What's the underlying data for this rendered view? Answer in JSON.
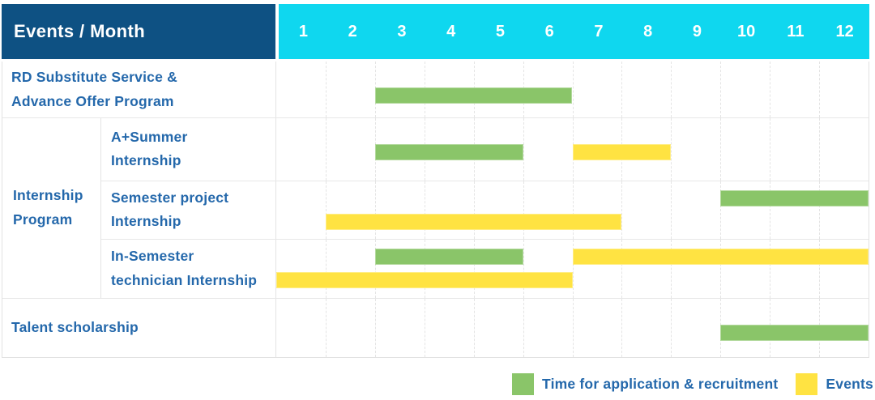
{
  "colors": {
    "header_bg": "#0E5183",
    "months_bg": "#0FD7EF",
    "label_text": "#2468AB",
    "recruitment": "#8AC569",
    "event": "#FFE342",
    "grid": "#E4E4E4",
    "row_line": "#E8E8E8",
    "border": "#E2E2E2"
  },
  "chart_data": {
    "type": "gantt",
    "corner_label": "Events / Month",
    "months": [
      "1",
      "2",
      "3",
      "4",
      "5",
      "6",
      "7",
      "8",
      "9",
      "10",
      "11",
      "12"
    ],
    "x_axis_unit": "month",
    "x_range": [
      1,
      12
    ],
    "legend": [
      {
        "type": "recruitment",
        "label": "Time for application & recruitment",
        "color": "#8AC569"
      },
      {
        "type": "event",
        "label": "Events",
        "color": "#FFE342"
      }
    ],
    "rows": [
      {
        "label": "RD Substitute Service &\nAdvance Offer Program",
        "bars": [
          {
            "type": "recruitment",
            "start_month": 3,
            "end_month": 6,
            "lane": "middle"
          }
        ]
      },
      {
        "group": "Internship\nProgram",
        "children": [
          {
            "label": "A+Summer\nInternship",
            "bars": [
              {
                "type": "recruitment",
                "start_month": 3,
                "end_month": 5,
                "lane": "middle"
              },
              {
                "type": "event",
                "start_month": 7,
                "end_month": 8,
                "lane": "middle"
              }
            ]
          },
          {
            "label": "Semester project\nInternship",
            "bars": [
              {
                "type": "recruitment",
                "start_month": 10,
                "end_month": 12,
                "lane": "top"
              },
              {
                "type": "event",
                "start_month": 2,
                "end_month": 7,
                "lane": "bottom"
              }
            ]
          },
          {
            "label": "In-Semester\ntechnician Internship",
            "bars": [
              {
                "type": "recruitment",
                "start_month": 3,
                "end_month": 5,
                "lane": "top"
              },
              {
                "type": "event",
                "start_month": 7,
                "end_month": 12,
                "lane": "top"
              },
              {
                "type": "event",
                "start_month": 1,
                "end_month": 6,
                "lane": "bottom"
              }
            ]
          }
        ]
      },
      {
        "label": "Talent scholarship",
        "bars": [
          {
            "type": "recruitment",
            "start_month": 10,
            "end_month": 12,
            "lane": "middle"
          }
        ]
      }
    ]
  }
}
